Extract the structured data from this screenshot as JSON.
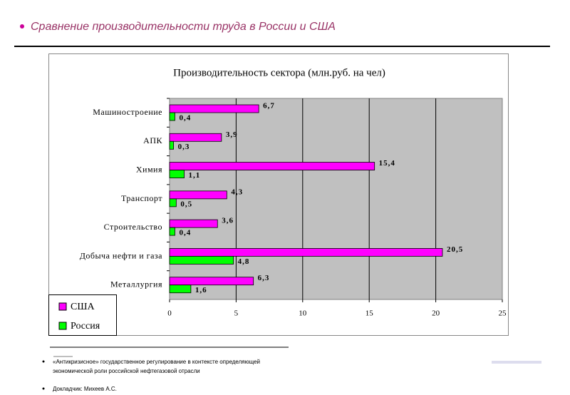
{
  "slide_title": "Сравнение производительности труда в России и США",
  "chart_data": {
    "type": "bar",
    "orientation": "horizontal",
    "title": "Производительность сектора (млн.руб. на чел)",
    "categories": [
      "Машиностроение",
      "АПК",
      "Химия",
      "Транспорт",
      "Строительство",
      "Добыча нефти и газа",
      "Металлургия"
    ],
    "series": [
      {
        "name": "США",
        "color": "#ff00ff",
        "values": [
          6.7,
          3.9,
          15.4,
          4.3,
          3.6,
          20.5,
          6.3
        ],
        "value_labels": [
          "6,7",
          "3,9",
          "15,4",
          "4,3",
          "3,6",
          "20,5",
          "6,3"
        ]
      },
      {
        "name": "Россия",
        "color": "#00ff00",
        "values": [
          0.4,
          0.3,
          1.1,
          0.5,
          0.4,
          4.8,
          1.6
        ],
        "value_labels": [
          "0,4",
          "0,3",
          "1,1",
          "0,5",
          "0,4",
          "4,8",
          "1,6"
        ]
      }
    ],
    "xlim": [
      0,
      25
    ],
    "xticks": [
      0,
      5,
      10,
      15,
      20,
      25
    ],
    "grid": true,
    "legend": "lower left"
  },
  "footnotes": [
    "«Антикризисное» государственное регулирование в контексте определяющей экономической роли российской нефтегазовой отрасли",
    "Докладчик: Михеев А.С."
  ]
}
